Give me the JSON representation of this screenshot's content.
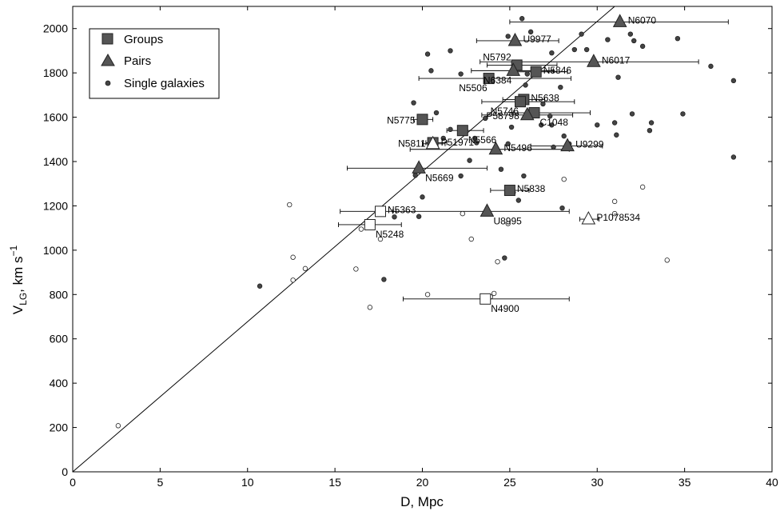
{
  "chart_data": {
    "type": "scatter",
    "xlabel": "D, Mpc",
    "ylabel_main": "V",
    "ylabel_sub": "LG",
    "ylabel_rest": ", km s",
    "ylabel_sup": "−1",
    "xlim": [
      0,
      40
    ],
    "ylim": [
      0,
      2100
    ],
    "xticks": [
      0,
      5,
      10,
      15,
      20,
      25,
      30,
      35,
      40
    ],
    "yticks": [
      0,
      200,
      400,
      600,
      800,
      1000,
      1200,
      1400,
      1600,
      1800,
      2000
    ],
    "legend": {
      "position": "top-left",
      "entries": [
        {
          "label": "Groups",
          "marker": "square"
        },
        {
          "label": "Pairs",
          "marker": "triangle"
        },
        {
          "label": "Single galaxies",
          "marker": "circle"
        }
      ]
    },
    "reference_line": {
      "from": [
        0,
        0
      ],
      "to": [
        31,
        2100
      ]
    },
    "groups": [
      {
        "name": "N5792",
        "x": 25.4,
        "y": 1835,
        "err": [
          23.7,
          27.7
        ],
        "filled": true,
        "label_pos": "upper-left"
      },
      {
        "name": "N5846",
        "x": 26.5,
        "y": 1805,
        "err": [
          25.2,
          28.3
        ],
        "filled": true,
        "label_pos": "right"
      },
      {
        "name": "N5506",
        "x": 23.8,
        "y": 1775,
        "err": [
          19.8,
          28.5
        ],
        "filled": true,
        "label_pos": "lower-left"
      },
      {
        "name": "N5638",
        "x": 25.8,
        "y": 1680,
        "err": [
          24.6,
          27.0
        ],
        "filled": true,
        "label_pos": "right"
      },
      {
        "name": "N5746",
        "x": 25.6,
        "y": 1670,
        "err": [
          23.4,
          28.7
        ],
        "filled": true,
        "label_pos": "lower-left"
      },
      {
        "name": "C1048",
        "x": 26.4,
        "y": 1620,
        "err": [
          25.2,
          29.6
        ],
        "filled": true,
        "label_pos": "lower-right"
      },
      {
        "name": "N5775",
        "x": 20.0,
        "y": 1590,
        "err": [
          19.5,
          20.6
        ],
        "filled": true,
        "label_pos": "left"
      },
      {
        "name": "N5566",
        "x": 22.3,
        "y": 1540,
        "err": [
          21.4,
          23.5
        ],
        "filled": true,
        "label_pos": "lower-right"
      },
      {
        "name": "N5811",
        "x": 20.6,
        "y": 1485,
        "err": [
          20.2,
          21.4
        ],
        "filled": true,
        "label_pos": "left"
      },
      {
        "name": "N5838",
        "x": 25.0,
        "y": 1270,
        "err": [
          23.9,
          26.1
        ],
        "filled": true,
        "label_pos": "right"
      },
      {
        "name": "N5363",
        "x": 17.6,
        "y": 1175,
        "err": [
          15.3,
          18.5
        ],
        "filled": false,
        "label_pos": "right"
      },
      {
        "name": "N5248",
        "x": 17.0,
        "y": 1115,
        "err": [
          15.2,
          18.8
        ],
        "filled": false,
        "label_pos": "lower-right"
      },
      {
        "name": "N4900",
        "x": 23.6,
        "y": 780,
        "err": [
          18.9,
          28.4
        ],
        "filled": false,
        "label_pos": "lower-right"
      }
    ],
    "pairs": [
      {
        "name": "N6070",
        "x": 31.3,
        "y": 2030,
        "err": [
          25.0,
          37.5
        ],
        "filled": true,
        "label_pos": "right"
      },
      {
        "name": "U9977",
        "x": 25.3,
        "y": 1945,
        "err": [
          23.1,
          27.8
        ],
        "filled": true,
        "label_pos": "right"
      },
      {
        "name": "N6017",
        "x": 29.8,
        "y": 1850,
        "err": [
          23.3,
          35.8
        ],
        "filled": true,
        "label_pos": "right"
      },
      {
        "name": "N6384",
        "x": 25.2,
        "y": 1810,
        "err": [
          22.8,
          27.5
        ],
        "filled": true,
        "label_pos": "lower-left"
      },
      {
        "name": "P58798",
        "x": 26.0,
        "y": 1610,
        "err": [
          23.4,
          28.6
        ],
        "filled": true,
        "label_pos": "left"
      },
      {
        "name": "P51971",
        "x": 20.6,
        "y": 1480,
        "err": [
          20.0,
          21.3
        ],
        "filled": false,
        "label_pos": "right"
      },
      {
        "name": "U9299",
        "x": 28.3,
        "y": 1470,
        "err": [
          26.2,
          30.3
        ],
        "filled": true,
        "label_pos": "right"
      },
      {
        "name": "N5496",
        "x": 24.2,
        "y": 1455,
        "err": [
          19.3,
          28.4
        ],
        "filled": true,
        "label_pos": "right"
      },
      {
        "name": "N5669",
        "x": 19.8,
        "y": 1370,
        "err": [
          15.7,
          23.7
        ],
        "filled": true,
        "label_pos": "lower-right"
      },
      {
        "name": "U8995",
        "x": 23.7,
        "y": 1175,
        "err": [
          18.3,
          28.4
        ],
        "filled": true,
        "label_pos": "lower-right"
      },
      {
        "name": "P1078534",
        "x": 29.5,
        "y": 1140,
        "err": [
          29.0,
          30.1
        ],
        "filled": false,
        "label_pos": "right"
      }
    ],
    "singles_filled": [
      [
        10.7,
        838
      ],
      [
        17.8,
        868
      ],
      [
        18.4,
        1150
      ],
      [
        19.8,
        1152
      ],
      [
        20.0,
        1240
      ],
      [
        20.3,
        1885
      ],
      [
        20.5,
        1810
      ],
      [
        19.5,
        1665
      ],
      [
        19.6,
        1338
      ],
      [
        20.8,
        1620
      ],
      [
        21.2,
        1505
      ],
      [
        21.6,
        1545
      ],
      [
        21.6,
        1900
      ],
      [
        22.2,
        1795
      ],
      [
        22.2,
        1335
      ],
      [
        22.7,
        1405
      ],
      [
        23.0,
        1505
      ],
      [
        23.1,
        1485
      ],
      [
        23.6,
        1595
      ],
      [
        24.5,
        1365
      ],
      [
        24.9,
        1480
      ],
      [
        24.9,
        1965
      ],
      [
        25.1,
        1555
      ],
      [
        25.5,
        1225
      ],
      [
        25.7,
        2045
      ],
      [
        25.8,
        1335
      ],
      [
        25.9,
        1745
      ],
      [
        26.2,
        1985
      ],
      [
        26.8,
        1565
      ],
      [
        27.3,
        1605
      ],
      [
        27.4,
        1890
      ],
      [
        27.4,
        1565
      ],
      [
        27.9,
        1735
      ],
      [
        28.1,
        1515
      ],
      [
        28.4,
        1480
      ],
      [
        28.7,
        1905
      ],
      [
        29.1,
        1975
      ],
      [
        29.4,
        1905
      ],
      [
        30.0,
        1565
      ],
      [
        30.6,
        1950
      ],
      [
        31.0,
        1575
      ],
      [
        31.1,
        1520
      ],
      [
        31.2,
        1780
      ],
      [
        31.9,
        1975
      ],
      [
        32.1,
        1945
      ],
      [
        32.6,
        1920
      ],
      [
        33.1,
        1575
      ],
      [
        33.0,
        1540
      ],
      [
        34.6,
        1955
      ],
      [
        34.9,
        1615
      ],
      [
        36.5,
        1830
      ],
      [
        37.8,
        1765
      ],
      [
        37.8,
        1420
      ],
      [
        27.5,
        1465
      ],
      [
        26.9,
        1660
      ],
      [
        24.7,
        965
      ],
      [
        28.0,
        1190
      ],
      [
        26.0,
        1795
      ],
      [
        32.0,
        1615
      ]
    ],
    "singles_open": [
      [
        2.6,
        208
      ],
      [
        12.4,
        1205
      ],
      [
        12.6,
        968
      ],
      [
        12.6,
        865
      ],
      [
        13.3,
        917
      ],
      [
        16.2,
        915
      ],
      [
        16.5,
        1095
      ],
      [
        17.0,
        742
      ],
      [
        17.6,
        1050
      ],
      [
        20.3,
        800
      ],
      [
        22.3,
        1165
      ],
      [
        22.8,
        1050
      ],
      [
        24.1,
        805
      ],
      [
        24.3,
        948
      ],
      [
        24.9,
        1120
      ],
      [
        25.2,
        1260
      ],
      [
        28.1,
        1320
      ],
      [
        31.0,
        1220
      ],
      [
        31.0,
        1165
      ],
      [
        32.6,
        1285
      ],
      [
        34.0,
        955
      ],
      [
        23.9,
        790
      ]
    ]
  }
}
